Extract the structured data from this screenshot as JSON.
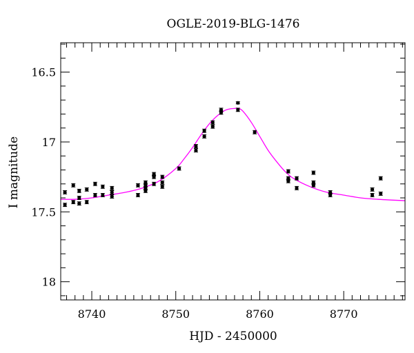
{
  "chart_data": {
    "type": "scatter",
    "title": "OGLE-2019-BLG-1476",
    "xlabel": "HJD - 2450000",
    "ylabel": "I magnitude",
    "xlim": [
      8736.3,
      8777.3
    ],
    "ylim": [
      18.13,
      16.29
    ],
    "y_inverted": true,
    "xticks": [
      8740,
      8750,
      8760,
      8770
    ],
    "yticks": [
      16.5,
      17,
      17.5,
      18
    ],
    "ytick_labels": [
      "16.5",
      "17",
      "17.5",
      "18"
    ],
    "grid": false,
    "colors": {
      "points": "#000000",
      "model": "#ff00ff"
    },
    "series": [
      {
        "type": "points",
        "x": [
          8736.8,
          8736.8,
          8737.8,
          8737.8,
          8738.5,
          8738.5,
          8738.5,
          8739.4,
          8739.4,
          8740.4,
          8740.4,
          8741.3,
          8741.3,
          8742.4,
          8742.4,
          8742.4,
          8745.5,
          8745.5,
          8746.4,
          8746.4,
          8746.4,
          8746.4,
          8747.4,
          8747.4,
          8747.4,
          8748.4,
          8748.4,
          8748.4,
          8750.4,
          8752.4,
          8752.4,
          8753.4,
          8753.4,
          8754.4,
          8754.4,
          8755.4,
          8755.4,
          8757.4,
          8757.4,
          8759.4,
          8763.4,
          8763.4,
          8763.4,
          8764.4,
          8764.4,
          8766.4,
          8766.4,
          8766.4,
          8768.4,
          8768.4,
          8773.4,
          8773.4,
          8774.4,
          8774.4
        ],
        "y": [
          17.45,
          17.36,
          17.43,
          17.31,
          17.44,
          17.4,
          17.35,
          17.43,
          17.34,
          17.38,
          17.3,
          17.38,
          17.32,
          17.39,
          17.36,
          17.33,
          17.38,
          17.31,
          17.33,
          17.29,
          17.35,
          17.31,
          17.23,
          17.3,
          17.25,
          17.25,
          17.29,
          17.32,
          17.19,
          17.03,
          17.06,
          16.92,
          16.96,
          16.86,
          16.89,
          16.77,
          16.79,
          16.72,
          16.77,
          16.93,
          17.21,
          17.26,
          17.28,
          17.26,
          17.33,
          17.22,
          17.29,
          17.31,
          17.36,
          17.38,
          17.34,
          17.38,
          17.37,
          17.26
        ],
        "err": [
          0.012,
          0.012,
          0.012,
          0.012,
          0.012,
          0.012,
          0.012,
          0.012,
          0.012,
          0.012,
          0.012,
          0.012,
          0.012,
          0.012,
          0.012,
          0.012,
          0.012,
          0.012,
          0.012,
          0.012,
          0.012,
          0.012,
          0.012,
          0.012,
          0.012,
          0.012,
          0.012,
          0.012,
          0.012,
          0.012,
          0.012,
          0.012,
          0.012,
          0.012,
          0.012,
          0.012,
          0.012,
          0.008,
          0.012,
          0.012,
          0.012,
          0.012,
          0.012,
          0.012,
          0.012,
          0.012,
          0.012,
          0.012,
          0.012,
          0.012,
          0.012,
          0.012,
          0.012,
          0.012
        ]
      },
      {
        "type": "model",
        "x": [
          8736.3,
          8738,
          8740,
          8742,
          8744,
          8746,
          8748,
          8750,
          8751,
          8752,
          8753,
          8754,
          8755,
          8756,
          8757,
          8757.5,
          8758,
          8759,
          8760,
          8761,
          8762,
          8763,
          8764,
          8766,
          8768,
          8770,
          8772,
          8774,
          8777.3
        ],
        "y": [
          17.41,
          17.41,
          17.4,
          17.38,
          17.36,
          17.33,
          17.28,
          17.19,
          17.12,
          17.04,
          16.95,
          16.87,
          16.81,
          16.77,
          16.76,
          16.76,
          16.78,
          16.86,
          16.96,
          17.06,
          17.14,
          17.21,
          17.26,
          17.32,
          17.36,
          17.38,
          17.4,
          17.41,
          17.42
        ]
      }
    ]
  }
}
